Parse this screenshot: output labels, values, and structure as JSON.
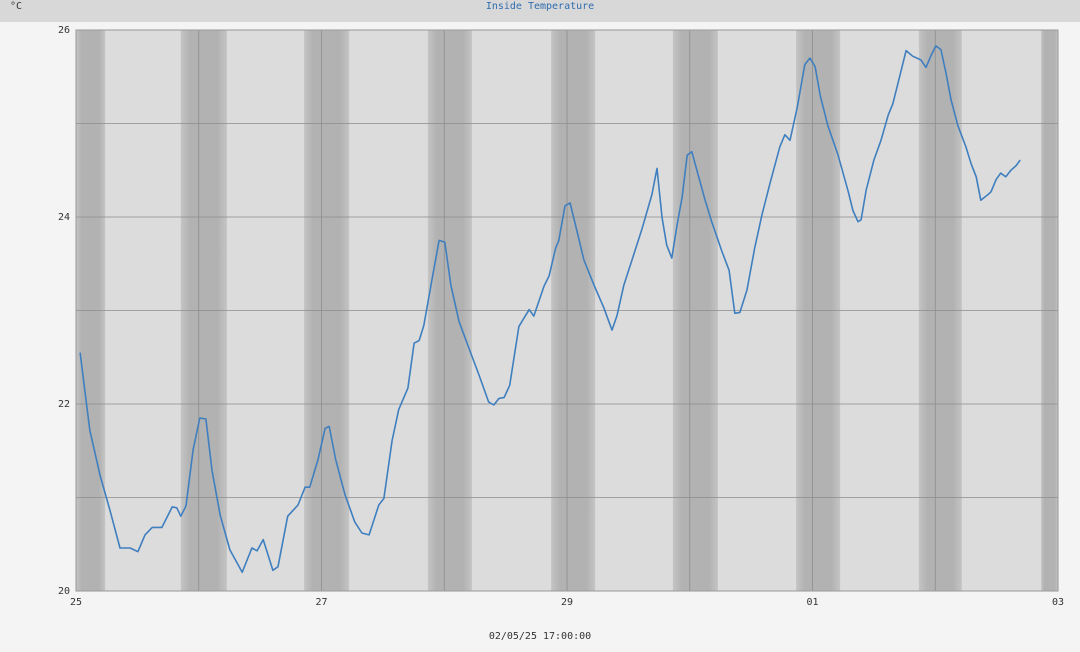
{
  "chart_data": {
    "type": "line",
    "title": "Inside Temperature",
    "y_label": "°C",
    "x_label": "02/05/25 17:00:00",
    "xlim": [
      0,
      192
    ],
    "xticks": [
      {
        "value": 0,
        "label": "25"
      },
      {
        "value": 48,
        "label": "27"
      },
      {
        "value": 96,
        "label": "29"
      },
      {
        "value": 144,
        "label": "01"
      },
      {
        "value": 192,
        "label": "03"
      }
    ],
    "x_minor_gridlines": [
      24,
      72,
      120,
      168
    ],
    "ylim": [
      20,
      26
    ],
    "yticks": [
      20,
      22,
      24,
      26
    ],
    "y_minor_gridlines": [
      21,
      23,
      25
    ],
    "grid": true,
    "night_bands": [
      [
        0,
        5.7
      ],
      [
        20.5,
        29.5
      ],
      [
        44.6,
        53.4
      ],
      [
        68.8,
        77.4
      ],
      [
        92.9,
        101.5
      ],
      [
        116.7,
        125.5
      ],
      [
        140.8,
        149.4
      ],
      [
        164.8,
        173.2
      ],
      [
        188.7,
        192
      ]
    ],
    "x": [
      0.8,
      2.7,
      4.7,
      6.6,
      8.6,
      10.6,
      12.1,
      13.5,
      14.9,
      16.8,
      18.8,
      19.7,
      20.5,
      21.5,
      22.9,
      24.2,
      25.4,
      26.6,
      28.2,
      30.1,
      32.5,
      34.4,
      35.4,
      36.6,
      38.5,
      39.5,
      41.4,
      43.4,
      44.8,
      45.7,
      47.3,
      48.7,
      49.5,
      50.8,
      52.6,
      54.5,
      55.9,
      57.3,
      59.2,
      60.2,
      61.8,
      63.1,
      64.9,
      66.1,
      67.1,
      68.0,
      69.6,
      71.0,
      72.1,
      73.3,
      74.9,
      76.8,
      78.8,
      80.7,
      81.7,
      82.7,
      83.7,
      84.8,
      86.6,
      88.6,
      89.5,
      91.5,
      92.5,
      93.8,
      94.4,
      95.6,
      96.6,
      98.0,
      99.3,
      101.3,
      103.2,
      104.8,
      105.8,
      107.1,
      108.7,
      110.7,
      112.6,
      113.6,
      114.6,
      115.5,
      116.5,
      117.5,
      118.5,
      119.5,
      120.4,
      121.4,
      123.0,
      124.3,
      126.3,
      127.7,
      128.8,
      129.8,
      131.2,
      132.7,
      134.1,
      135.7,
      137.6,
      138.6,
      139.6,
      141.0,
      142.5,
      143.5,
      144.5,
      145.5,
      147.0,
      149.0,
      151.0,
      151.9,
      152.9,
      153.5,
      154.5,
      156.0,
      157.4,
      158.8,
      159.7,
      160.9,
      162.3,
      163.6,
      165.2,
      166.2,
      167.2,
      168.1,
      169.1,
      170.1,
      171.1,
      172.4,
      174.0,
      175.0,
      176.0,
      176.9,
      178.3,
      178.9,
      179.9,
      180.8,
      181.8,
      182.8,
      183.8,
      184.6
    ],
    "series": [
      {
        "name": "Inside Temperature",
        "color": "#3f7fbf",
        "values": [
          22.55,
          21.72,
          21.24,
          20.87,
          20.46,
          20.46,
          20.42,
          20.6,
          20.68,
          20.68,
          20.9,
          20.89,
          20.8,
          20.91,
          21.51,
          21.85,
          21.84,
          21.29,
          20.81,
          20.44,
          20.2,
          20.46,
          20.43,
          20.55,
          20.22,
          20.26,
          20.8,
          20.92,
          21.11,
          21.11,
          21.4,
          21.74,
          21.76,
          21.4,
          21.03,
          20.74,
          20.62,
          20.6,
          20.92,
          20.99,
          21.61,
          21.94,
          22.17,
          22.65,
          22.68,
          22.84,
          23.33,
          23.75,
          23.73,
          23.27,
          22.88,
          22.6,
          22.31,
          22.02,
          21.99,
          22.06,
          22.07,
          22.2,
          22.83,
          23.01,
          22.94,
          23.26,
          23.37,
          23.67,
          23.75,
          24.12,
          24.15,
          23.84,
          23.54,
          23.27,
          23.03,
          22.79,
          22.95,
          23.27,
          23.54,
          23.88,
          24.24,
          24.52,
          23.99,
          23.7,
          23.56,
          23.91,
          24.21,
          24.66,
          24.7,
          24.5,
          24.18,
          23.95,
          23.63,
          23.43,
          22.97,
          22.98,
          23.22,
          23.67,
          24.02,
          24.36,
          24.75,
          24.88,
          24.82,
          25.17,
          25.63,
          25.7,
          25.61,
          25.3,
          24.98,
          24.66,
          24.27,
          24.07,
          23.95,
          23.97,
          24.29,
          24.61,
          24.82,
          25.09,
          25.21,
          25.47,
          25.78,
          25.72,
          25.68,
          25.6,
          25.73,
          25.83,
          25.79,
          25.54,
          25.25,
          24.98,
          24.75,
          24.57,
          24.43,
          24.18,
          24.24,
          24.27,
          24.4,
          24.47,
          24.43,
          24.5,
          24.55,
          24.61
        ]
      }
    ]
  }
}
